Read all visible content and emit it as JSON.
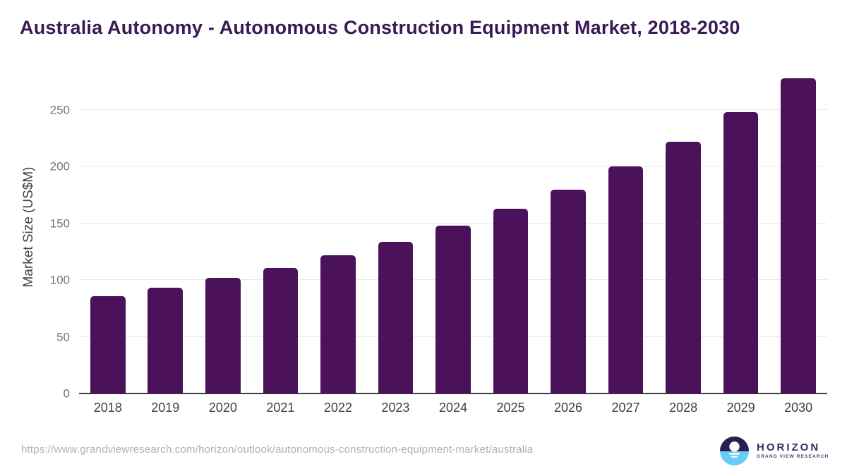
{
  "header": {
    "title": "Australia Autonomy - Autonomous Construction Equipment Market, 2018-2030"
  },
  "chart_data": {
    "type": "bar",
    "title": "Australia Autonomy - Autonomous Construction Equipment Market, 2018-2030",
    "categories": [
      "2018",
      "2019",
      "2020",
      "2021",
      "2022",
      "2023",
      "2024",
      "2025",
      "2026",
      "2027",
      "2028",
      "2029",
      "2030"
    ],
    "values": [
      86,
      93,
      102,
      111,
      122,
      134,
      148,
      163,
      180,
      200,
      222,
      248,
      278
    ],
    "xlabel": "",
    "ylabel": "Market Size (US$M)",
    "ylim": [
      0,
      278
    ],
    "yticks": [
      0,
      50,
      100,
      150,
      200,
      250
    ],
    "grid": "horizontal",
    "legend": "none",
    "bar_color": "#4b115a"
  },
  "footer": {
    "source_url": "https://www.grandviewresearch.com/horizon/outlook/autonomous-construction-equipment-market/australia",
    "logo": {
      "brand": "HORIZON",
      "sub_brand": "GRAND VIEW RESEARCH",
      "icon": "sun-over-horizon-icon",
      "icon_top_color": "#2b2150",
      "icon_bottom_color": "#67cdf5"
    }
  },
  "colors": {
    "title": "#3a1a55",
    "bar": "#4b115a",
    "gridline": "#e8e8e8",
    "axis_line": "#3d3d3d",
    "y_tick_label": "#757575",
    "x_tick_label": "#424242",
    "url_text": "#b1b0b0"
  }
}
